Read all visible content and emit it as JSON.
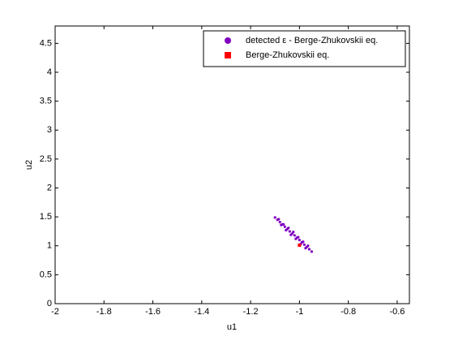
{
  "chart_data": {
    "type": "scatter",
    "xlabel": "u1",
    "ylabel": "u2",
    "xlim": [
      -2,
      -0.55
    ],
    "ylim": [
      0,
      4.8
    ],
    "xticks": [
      -2,
      -1.8,
      -1.6,
      -1.4,
      -1.2,
      -1,
      -0.8,
      -0.6
    ],
    "yticks": [
      0,
      0.5,
      1,
      1.5,
      2,
      2.5,
      3,
      3.5,
      4,
      4.5
    ],
    "legend_position": "upper right",
    "series": [
      {
        "name": "detected ε - Berge-Zhukovskii eq.",
        "color": "#8000c0",
        "marker": "circle",
        "x": [
          -1.1,
          -1.09,
          -1.08,
          -1.07,
          -1.06,
          -1.05,
          -1.04,
          -1.03,
          -1.02,
          -1.01,
          -1.0,
          -0.99,
          -0.98,
          -0.97,
          -0.96,
          -0.95,
          -1.085,
          -1.075,
          -1.065,
          -1.055,
          -1.045,
          -1.035,
          -1.025,
          -1.015,
          -1.005,
          -0.995,
          -0.985,
          -0.975,
          -0.965
        ],
        "y": [
          1.49,
          1.45,
          1.41,
          1.37,
          1.33,
          1.29,
          1.25,
          1.21,
          1.18,
          1.14,
          1.1,
          1.06,
          1.02,
          0.98,
          0.94,
          0.9,
          1.46,
          1.36,
          1.37,
          1.27,
          1.31,
          1.19,
          1.24,
          1.12,
          1.15,
          1.03,
          1.07,
          0.96,
          1.0
        ]
      },
      {
        "name": "Berge-Zhukovskii eq.",
        "color": "#ff0000",
        "marker": "square",
        "x": [
          -1.0
        ],
        "y": [
          1.01
        ]
      }
    ]
  }
}
